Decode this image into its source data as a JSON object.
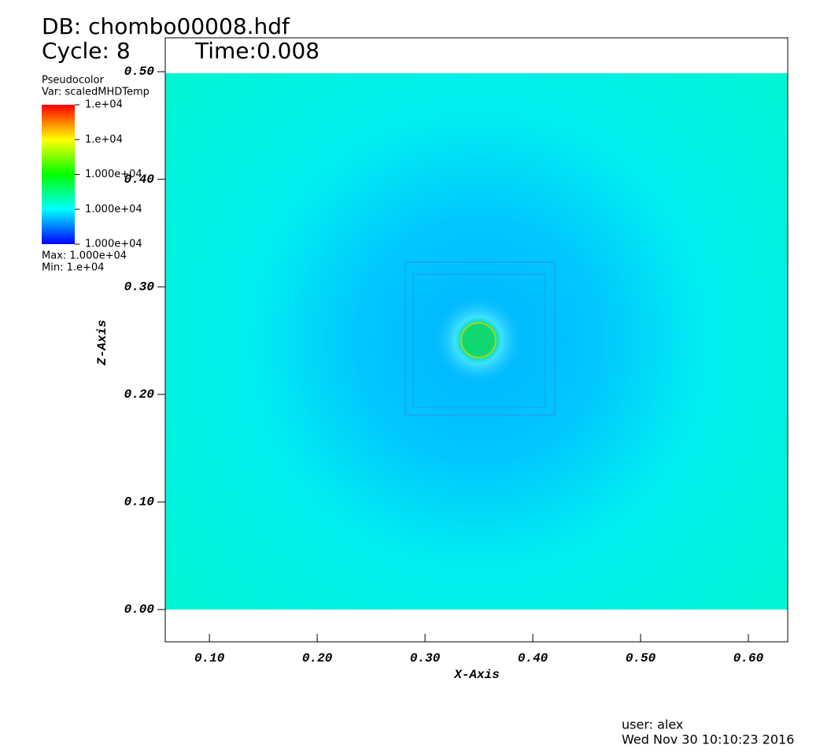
{
  "chart_data": {
    "type": "pseudocolor",
    "title": "DB: chombo00008.hdf",
    "cycle": "Cycle: 8",
    "time": "Time:0.008",
    "plot_name": "Pseudocolor",
    "variable": "Var: scaledMHDTemp",
    "colorbar_labels": [
      "1.000e+04",
      "1.000e+04",
      "1.000e+04",
      "1.e+04",
      "1.e+04"
    ],
    "max_text": "Max:  1.000e+04",
    "min_text": "Min:  1.e+04",
    "x_label": "X-Axis",
    "y_label": "Z-Axis",
    "xlim": [
      0.059,
      0.6365
    ],
    "ylim": [
      -0.03,
      0.5315
    ],
    "xticks": [
      {
        "value": 0.1,
        "label": "0.10"
      },
      {
        "value": 0.2,
        "label": "0.20"
      },
      {
        "value": 0.3,
        "label": "0.30"
      },
      {
        "value": 0.4,
        "label": "0.40"
      },
      {
        "value": 0.5,
        "label": "0.50"
      },
      {
        "value": 0.6,
        "label": "0.60"
      }
    ],
    "yticks": [
      {
        "value": 0,
        "label": "0.00"
      },
      {
        "value": 0.1,
        "label": "0.10"
      },
      {
        "value": 0.2,
        "label": "0.20"
      },
      {
        "value": 0.3,
        "label": "0.30"
      },
      {
        "value": 0.4,
        "label": "0.40"
      },
      {
        "value": 0.5,
        "label": "0.50"
      }
    ],
    "user": "user: alex",
    "date": "Wed Nov 30 10:10:23 2016"
  }
}
